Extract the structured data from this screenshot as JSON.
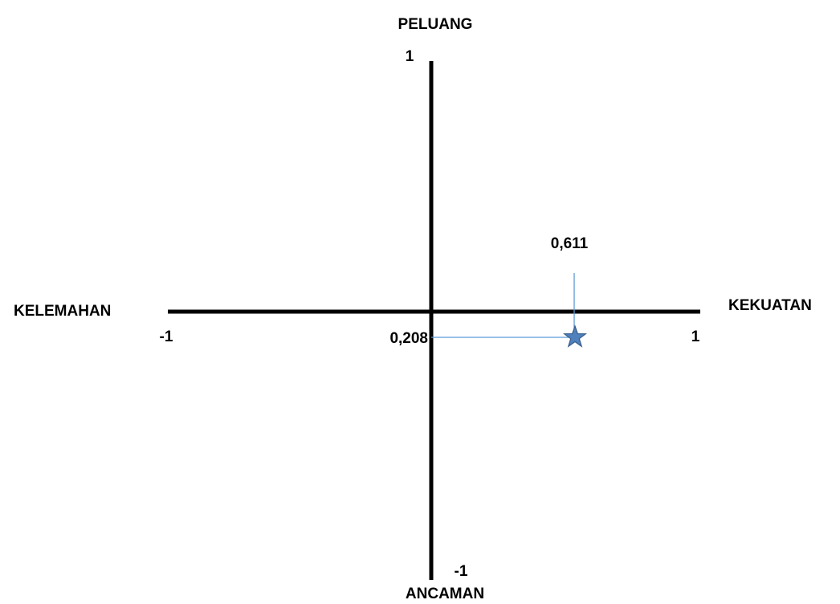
{
  "labels": {
    "top": "PELUANG",
    "bottom": "ANCAMAN",
    "left": "KELEMAHAN",
    "right": "KEKUATAN"
  },
  "ticks": {
    "y_max": "1",
    "y_min": "-1",
    "x_min": "-1",
    "x_max": "1"
  },
  "point_labels": {
    "x_value": "0,611",
    "y_value": "0,208"
  },
  "colors": {
    "axis": "#000000",
    "guide": "#5b9bd5",
    "marker_fill": "#4f81bd",
    "marker_stroke": "#385d8a"
  }
}
